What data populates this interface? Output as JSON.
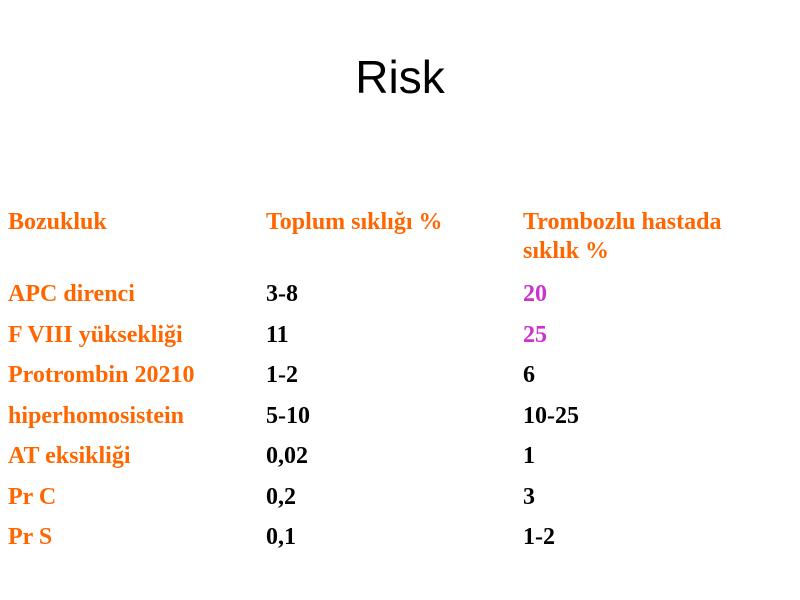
{
  "title": "Risk",
  "table": {
    "header": [
      "Bozukluk",
      "Toplum sıklığı %",
      "Trombozlu hastada sıklık %"
    ],
    "rows": [
      [
        "APC direnci",
        "3-8",
        "20"
      ],
      [
        "F VIII yüksekliği",
        "11",
        "25"
      ],
      [
        "Protrombin 20210",
        "1-2",
        "6"
      ],
      [
        "hiperhomosistein",
        "5-10",
        "10-25"
      ],
      [
        "AT eksikliği",
        "0,02",
        "1"
      ],
      [
        "Pr C",
        "0,2",
        "3"
      ],
      [
        "Pr S",
        "0,1",
        "1-2"
      ]
    ],
    "highlight_rows": [
      0,
      1
    ]
  }
}
